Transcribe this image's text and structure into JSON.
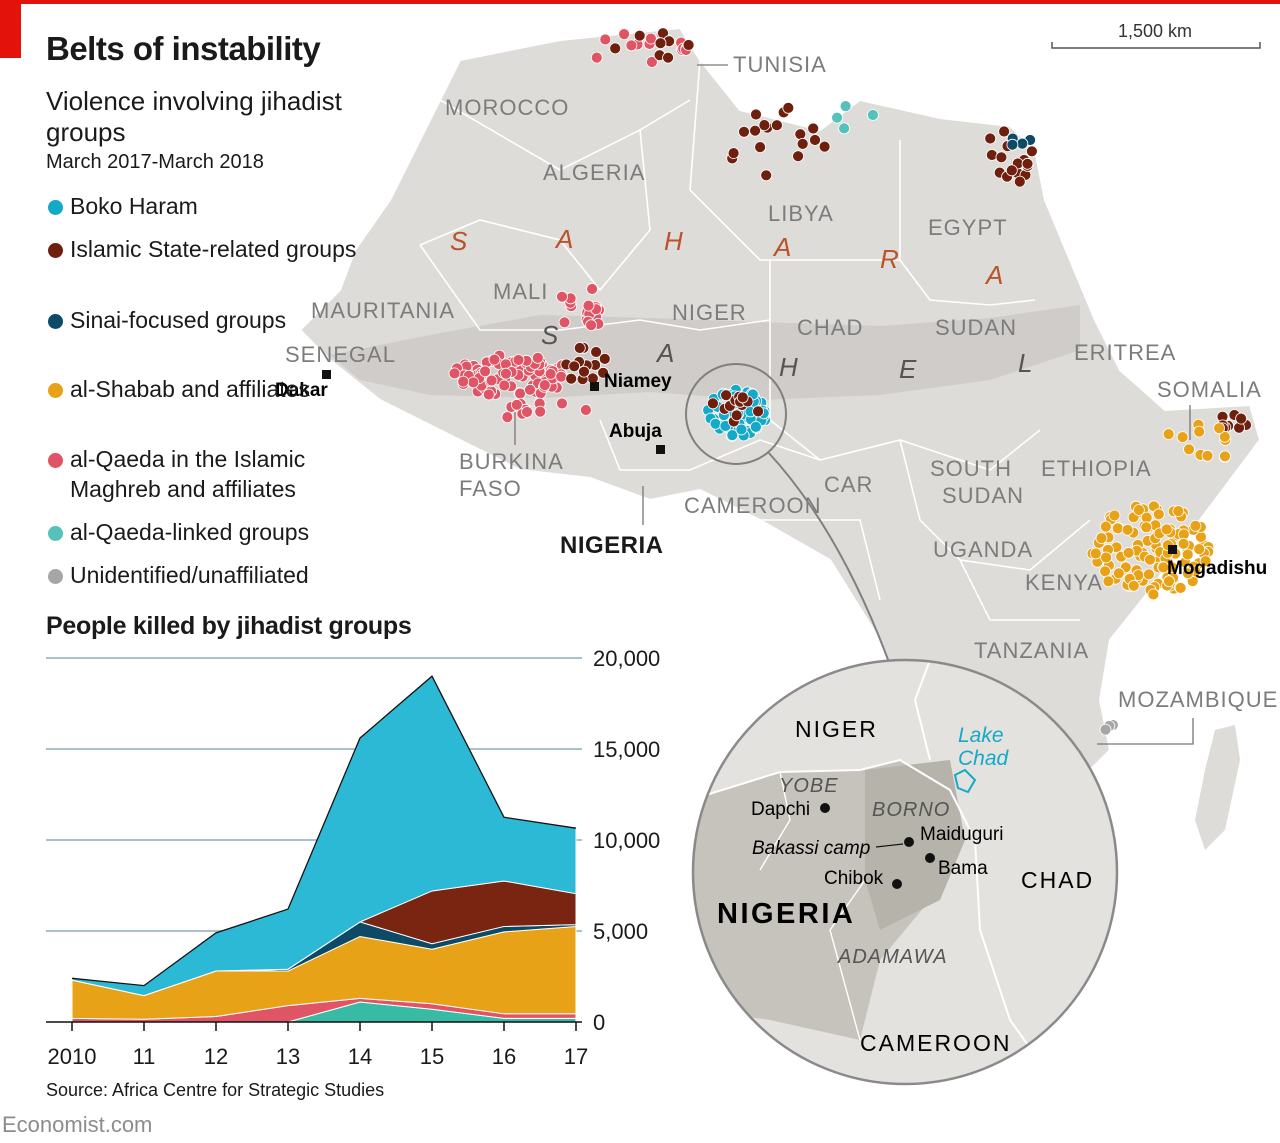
{
  "title": "Belts of instability",
  "subtitle": "Violence involving jihadist groups",
  "dates": "March 2017-March 2018",
  "scale_label": "1,500 km",
  "legend": [
    {
      "label": "Boko Haram",
      "color": "#15a9c8"
    },
    {
      "label": "Islamic State-related groups",
      "color": "#6e1f0d"
    },
    {
      "label": "Sinai-focused groups",
      "color": "#0c4a66"
    },
    {
      "label": "al-Shabab and affiliates",
      "color": "#e8a217"
    },
    {
      "label": "al-Qaeda in the Islamic Maghreb and affiliates",
      "color": "#e05565"
    },
    {
      "label": "al-Qaeda-linked groups",
      "color": "#55c1bb"
    },
    {
      "label": "Unidentified/unaffiliated",
      "color": "#a6a6a6"
    }
  ],
  "map": {
    "countries": [
      "MOROCCO",
      "ALGERIA",
      "TUNISIA",
      "LIBYA",
      "EGYPT",
      "MAURITANIA",
      "MALI",
      "NIGER",
      "CHAD",
      "SUDAN",
      "ERITREA",
      "SENEGAL",
      "BURKINA FASO",
      "NIGERIA",
      "CAMEROON",
      "CAR",
      "SOUTH SUDAN",
      "ETHIOPIA",
      "SOMALIA",
      "UGANDA",
      "KENYA",
      "TANZANIA",
      "MOZAMBIQUE"
    ],
    "sahara_letters": [
      "S",
      "A",
      "H",
      "A",
      "R",
      "A"
    ],
    "sahel_letters": [
      "S",
      "A",
      "H",
      "E",
      "L"
    ],
    "cities": [
      "Dakar",
      "Niamey",
      "Abuja",
      "Mogadishu"
    ]
  },
  "inset": {
    "countries": [
      "NIGER",
      "NIGERIA",
      "CHAD",
      "CAMEROON"
    ],
    "lake": "Lake Chad",
    "states": [
      "YOBE",
      "BORNO",
      "ADAMAWA"
    ],
    "towns": [
      "Dapchi",
      "Maiduguri",
      "Bakassi camp",
      "Bama",
      "Chibok"
    ]
  },
  "chart_title": "People killed by jihadist groups",
  "chart_data": {
    "type": "area",
    "stacked": true,
    "x": [
      "2010",
      "11",
      "12",
      "13",
      "14",
      "15",
      "16",
      "17"
    ],
    "ylim": [
      0,
      20000
    ],
    "yticks": [
      "20,000",
      "15,000",
      "10,000",
      "5,000",
      "0"
    ],
    "series": [
      {
        "name": "al-Qaeda-linked groups",
        "color": "#38bba5",
        "values": [
          0,
          0,
          0,
          0,
          1100,
          700,
          200,
          200
        ]
      },
      {
        "name": "al-Qaeda in the Islamic Maghreb and affiliates",
        "color": "#e05565",
        "values": [
          200,
          150,
          300,
          900,
          200,
          300,
          250,
          250
        ]
      },
      {
        "name": "al-Shabab and affiliates",
        "color": "#e8a217",
        "values": [
          2100,
          1300,
          2500,
          1900,
          3400,
          3000,
          4500,
          4800
        ]
      },
      {
        "name": "Sinai-focused groups",
        "color": "#0c4a66",
        "values": [
          0,
          0,
          0,
          100,
          800,
          300,
          300,
          100
        ]
      },
      {
        "name": "Islamic State-related groups",
        "color": "#7a2512",
        "values": [
          0,
          0,
          0,
          0,
          0,
          2900,
          2500,
          1700
        ]
      },
      {
        "name": "Boko Haram",
        "color": "#2bb9d5",
        "values": [
          100,
          550,
          2100,
          3300,
          10100,
          11800,
          3500,
          3600
        ]
      }
    ]
  },
  "source": "Source: Africa Centre for Strategic Studies",
  "brand": "Economist.com"
}
